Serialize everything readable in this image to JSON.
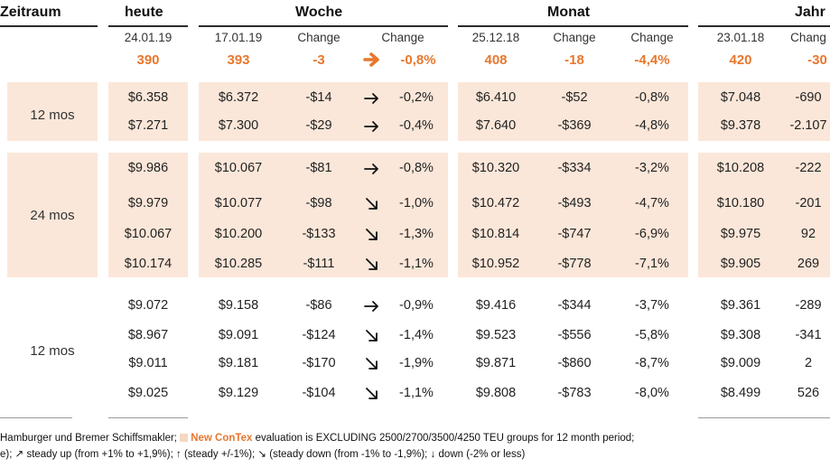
{
  "header": {
    "zeitraum": "Zeitraum",
    "heute": "heute",
    "woche": "Woche",
    "monat": "Monat",
    "jahr": "Jahr"
  },
  "subheader": {
    "heute_date": "24.01.19",
    "woche_date": "17.01.19",
    "woche_change1": "Change",
    "woche_change2": "Change",
    "monat_date": "25.12.18",
    "monat_change1": "Change",
    "monat_change2": "Change",
    "jahr_date": "23.01.18",
    "jahr_change1": "Chang"
  },
  "index": {
    "heute": "390",
    "woche_value": "393",
    "woche_abs": "-3",
    "woche_arrow": "right-arrow",
    "woche_pct": "-0,8%",
    "monat_value": "408",
    "monat_abs": "-18",
    "monat_pct": "-4,4%",
    "jahr_value": "420",
    "jahr_abs": "-30"
  },
  "groups": [
    {
      "label": "12 mos",
      "shaded": true
    },
    {
      "label": "24 mos",
      "shaded": true
    },
    {
      "label": "12 mos",
      "shaded": false
    }
  ],
  "rows": [
    {
      "heute": "$6.358",
      "w_val": "$6.372",
      "w_abs": "-$14",
      "w_arrow": "right-arrow",
      "w_pct": "-0,2%",
      "m_val": "$6.410",
      "m_abs": "-$52",
      "m_pct": "-0,8%",
      "j_val": "$7.048",
      "j_abs": "-690"
    },
    {
      "heute": "$7.271",
      "w_val": "$7.300",
      "w_abs": "-$29",
      "w_arrow": "right-arrow",
      "w_pct": "-0,4%",
      "m_val": "$7.640",
      "m_abs": "-$369",
      "m_pct": "-4,8%",
      "j_val": "$9.378",
      "j_abs": "-2.107"
    },
    {
      "heute": "$9.986",
      "w_val": "$10.067",
      "w_abs": "-$81",
      "w_arrow": "right-arrow",
      "w_pct": "-0,8%",
      "m_val": "$10.320",
      "m_abs": "-$334",
      "m_pct": "-3,2%",
      "j_val": "$10.208",
      "j_abs": "-222"
    },
    {
      "heute": "$9.979",
      "w_val": "$10.077",
      "w_abs": "-$98",
      "w_arrow": "down-right-arrow",
      "w_pct": "-1,0%",
      "m_val": "$10.472",
      "m_abs": "-$493",
      "m_pct": "-4,7%",
      "j_val": "$10.180",
      "j_abs": "-201"
    },
    {
      "heute": "$10.067",
      "w_val": "$10.200",
      "w_abs": "-$133",
      "w_arrow": "down-right-arrow",
      "w_pct": "-1,3%",
      "m_val": "$10.814",
      "m_abs": "-$747",
      "m_pct": "-6,9%",
      "j_val": "$9.975",
      "j_abs": "92"
    },
    {
      "heute": "$10.174",
      "w_val": "$10.285",
      "w_abs": "-$111",
      "w_arrow": "down-right-arrow",
      "w_pct": "-1,1%",
      "m_val": "$10.952",
      "m_abs": "-$778",
      "m_pct": "-7,1%",
      "j_val": "$9.905",
      "j_abs": "269"
    },
    {
      "heute": "$9.072",
      "w_val": "$9.158",
      "w_abs": "-$86",
      "w_arrow": "right-arrow",
      "w_pct": "-0,9%",
      "m_val": "$9.416",
      "m_abs": "-$344",
      "m_pct": "-3,7%",
      "j_val": "$9.361",
      "j_abs": "-289"
    },
    {
      "heute": "$8.967",
      "w_val": "$9.091",
      "w_abs": "-$124",
      "w_arrow": "down-right-arrow",
      "w_pct": "-1,4%",
      "m_val": "$9.523",
      "m_abs": "-$556",
      "m_pct": "-5,8%",
      "j_val": "$9.308",
      "j_abs": "-341"
    },
    {
      "heute": "$9.011",
      "w_val": "$9.181",
      "w_abs": "-$170",
      "w_arrow": "down-right-arrow",
      "w_pct": "-1,9%",
      "m_val": "$9.871",
      "m_abs": "-$860",
      "m_pct": "-8,7%",
      "j_val": "$9.009",
      "j_abs": "2"
    },
    {
      "heute": "$9.025",
      "w_val": "$9.129",
      "w_abs": "-$104",
      "w_arrow": "down-right-arrow",
      "w_pct": "-1,1%",
      "m_val": "$9.808",
      "m_abs": "-$783",
      "m_pct": "-8,0%",
      "j_val": "$8.499",
      "j_abs": "526"
    }
  ],
  "footer": {
    "line1_prefix": "Hamburger und Bremer Schiffsmakler;",
    "line1_brand": "New ConTex",
    "line1_suffix": "evaluation is EXCLUDING 2500/2700/3500/4250 TEU groups for 12 month period;",
    "line2": "e); ↗ steady up (from +1% to +1,9%); ↑ (steady +/-1%); ↘ (steady down (from -1% to -1,9%); ↓ down (-2% or less)"
  },
  "colors": {
    "accent": "#e8772e",
    "band": "#fbe7d9"
  }
}
